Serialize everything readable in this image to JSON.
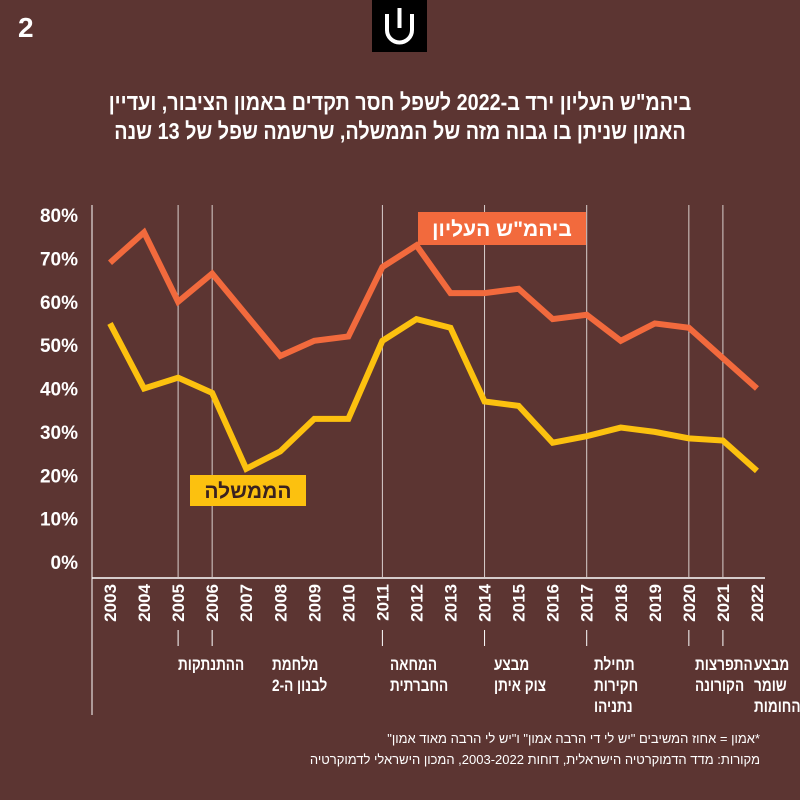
{
  "page_number": "2",
  "title_line1": "ביהמ\"ש העליון ירד ב-2022 לשפל חסר תקדים באמון הציבור, ועדיין",
  "title_line2": "האמון שניתן בו גבוה מזה של הממשלה, שרשמה שפל של 13 שנה",
  "footnote": "*אמון = אחוז המשיבים \"יש לי די הרבה אמון\" ו\"יש לי הרבה מאוד אמון\"",
  "source": "מקורות: מדד הדמוקרטיה הישראלית, דוחות 2003-2022, המכון הישראלי לדמוקרטיה",
  "colors": {
    "supreme": "#f26a3d",
    "government": "#fcc10f",
    "background": "#5c3532"
  },
  "chart_data": {
    "type": "line",
    "x": [
      "2003",
      "2004",
      "2005",
      "2006",
      "2007",
      "2008",
      "2009",
      "2010",
      "2011",
      "2012",
      "2013",
      "2014",
      "2015",
      "2016",
      "2017",
      "2018",
      "2019",
      "2020",
      "2021",
      "2022"
    ],
    "ylim": [
      0,
      80
    ],
    "yticks": [
      "0%",
      "10%",
      "20%",
      "30%",
      "40%",
      "50%",
      "60%",
      "70%",
      "80%"
    ],
    "series": [
      {
        "name": "ביהמ\"ש העליון",
        "values": [
          69,
          76,
          60,
          66.5,
          57,
          47.5,
          51,
          52,
          68,
          73,
          62,
          62,
          63,
          56,
          57,
          51,
          55,
          54,
          47,
          40
        ]
      },
      {
        "name": "הממשלה",
        "values": [
          55,
          40,
          42.5,
          39,
          21.5,
          25.5,
          33,
          33,
          51,
          56,
          54,
          37,
          36,
          27.5,
          29,
          31,
          30,
          28.5,
          28,
          21
        ]
      }
    ],
    "annotations": [
      {
        "year": "2005",
        "label": [
          "ההתנתקות"
        ]
      },
      {
        "year": "2006",
        "label": [
          "מלחמת",
          "לבנון ה-2"
        ]
      },
      {
        "year": "2011",
        "label": [
          "המחאה",
          "החברתית"
        ]
      },
      {
        "year": "2014",
        "label": [
          "מבצע",
          "צוק איתן"
        ]
      },
      {
        "year": "2017",
        "label": [
          "תחילת",
          "חקירות",
          "נתניהו"
        ]
      },
      {
        "year": "2020",
        "label": [
          "התפרצות",
          "הקורונה"
        ]
      },
      {
        "year": "2021",
        "label": [
          "מבצע",
          "שומר",
          "החומות"
        ]
      }
    ]
  }
}
